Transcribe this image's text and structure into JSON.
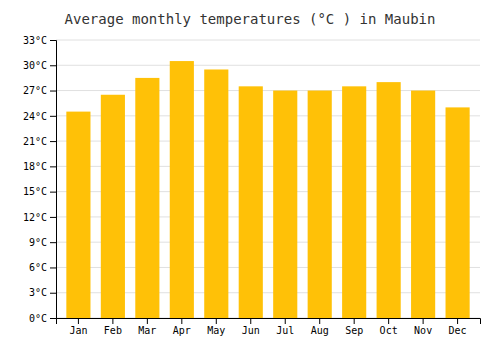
{
  "chart_data": {
    "type": "bar",
    "title": "Average monthly temperatures (°C ) in Maubin",
    "categories": [
      "Jan",
      "Feb",
      "Mar",
      "Apr",
      "May",
      "Jun",
      "Jul",
      "Aug",
      "Sep",
      "Oct",
      "Nov",
      "Dec"
    ],
    "values": [
      24.5,
      26.5,
      28.5,
      30.5,
      29.5,
      27.5,
      27.0,
      27.0,
      27.5,
      28.0,
      27.0,
      25.0
    ],
    "color": "#FFC107",
    "ylim": [
      0,
      33
    ],
    "yticks": [
      {
        "value": 0,
        "label": "0°C"
      },
      {
        "value": 3,
        "label": "3°C"
      },
      {
        "value": 6,
        "label": "6°C"
      },
      {
        "value": 9,
        "label": "9°C"
      },
      {
        "value": 12,
        "label": "12°C"
      },
      {
        "value": 15,
        "label": "15°C"
      },
      {
        "value": 18,
        "label": "18°C"
      },
      {
        "value": 21,
        "label": "21°C"
      },
      {
        "value": 24,
        "label": "24°C"
      },
      {
        "value": 27,
        "label": "27°C"
      },
      {
        "value": 30,
        "label": "30°C"
      },
      {
        "value": 33,
        "label": "33°C"
      }
    ],
    "grid": true
  }
}
